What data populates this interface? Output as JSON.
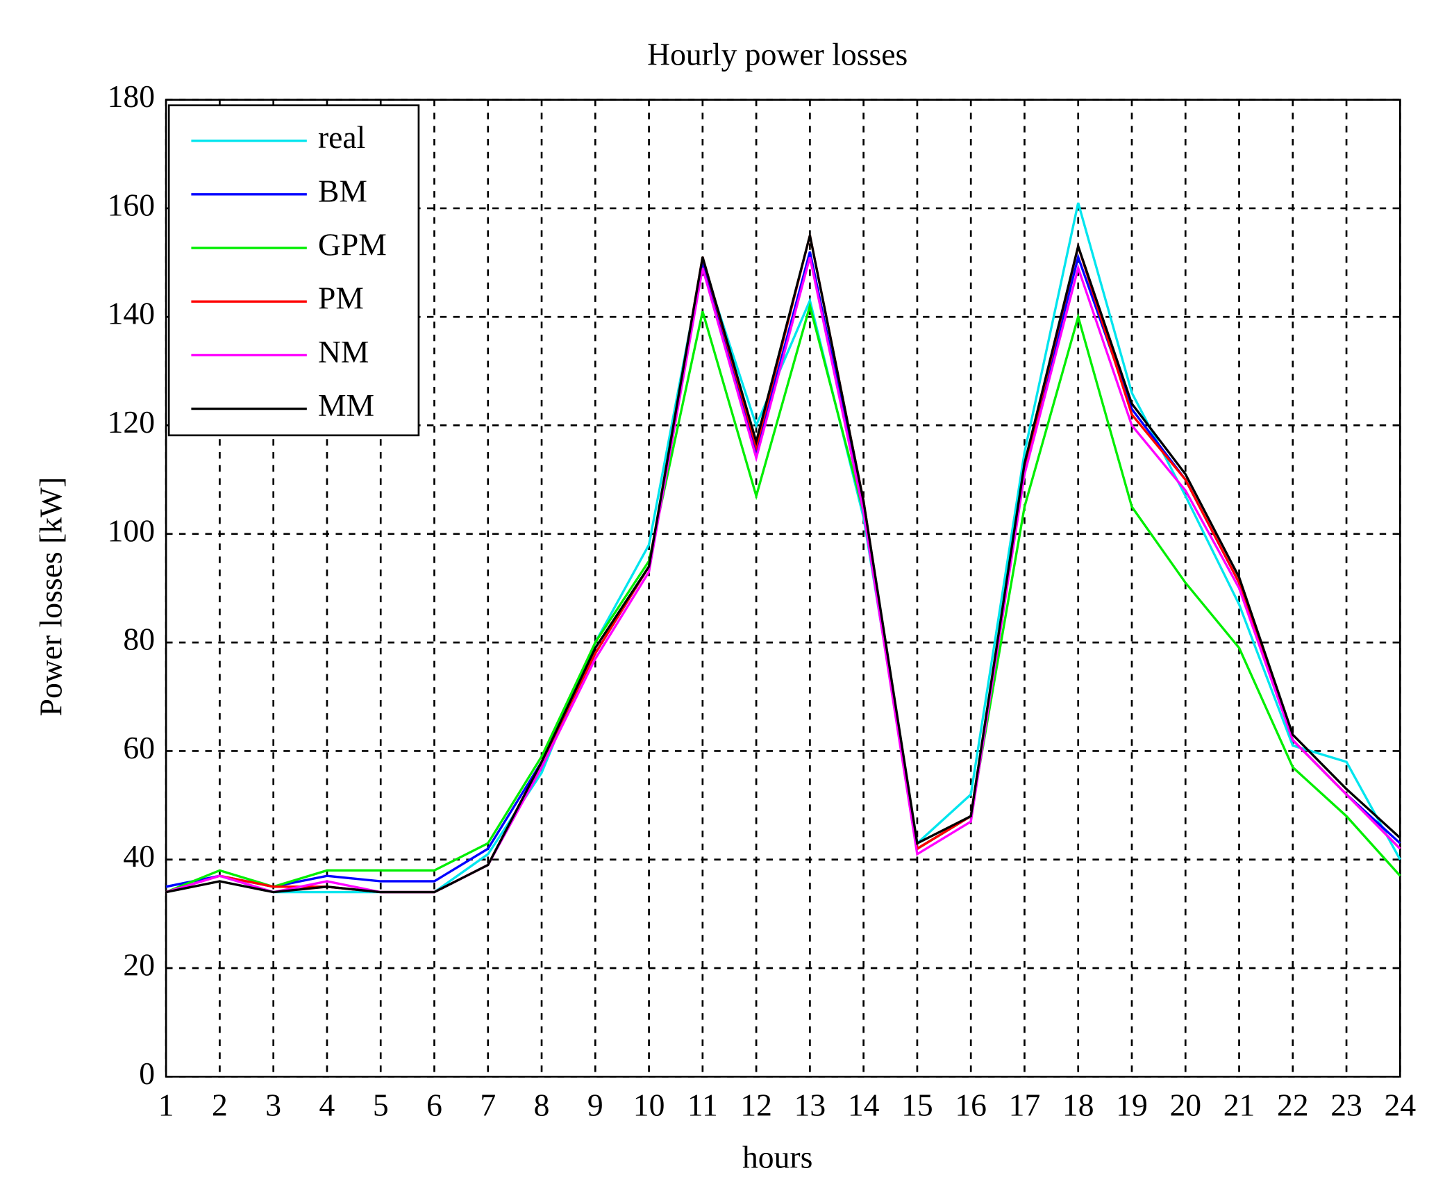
{
  "chart_data": {
    "type": "line",
    "title": "Hourly power losses",
    "x_label": "hours",
    "y_label": "Power losses [kW]",
    "x": [
      1,
      2,
      3,
      4,
      5,
      6,
      7,
      8,
      9,
      10,
      11,
      12,
      13,
      14,
      15,
      16,
      17,
      18,
      19,
      20,
      21,
      22,
      23,
      24
    ],
    "xlim": [
      1,
      24
    ],
    "xticks": [
      1,
      2,
      3,
      4,
      5,
      6,
      7,
      8,
      9,
      10,
      11,
      12,
      13,
      14,
      15,
      16,
      17,
      18,
      19,
      20,
      21,
      22,
      23,
      24
    ],
    "ylim": [
      0,
      180
    ],
    "yticks": [
      0,
      20,
      40,
      60,
      80,
      100,
      120,
      140,
      160,
      180
    ],
    "grid": true,
    "legend": "upper-left",
    "series": [
      {
        "name": "real",
        "color": "#00e5ee",
        "values": [
          35,
          37,
          34,
          34,
          34,
          34,
          41,
          56,
          80,
          98,
          150,
          120,
          143,
          103,
          43,
          52,
          115,
          161,
          126,
          107,
          87,
          61,
          58,
          40
        ]
      },
      {
        "name": "BM",
        "color": "#0000ff",
        "values": [
          35,
          37,
          35,
          37,
          36,
          36,
          42,
          58,
          78,
          94,
          150,
          115,
          152,
          105,
          42,
          48,
          112,
          151,
          123,
          110,
          91,
          62,
          52,
          43
        ]
      },
      {
        "name": "GPM",
        "color": "#00ee00",
        "values": [
          34,
          38,
          35,
          38,
          38,
          38,
          43,
          59,
          80,
          95,
          141,
          107,
          142,
          104,
          42,
          48,
          105,
          140,
          105,
          91,
          79,
          57,
          48,
          37
        ]
      },
      {
        "name": "PM",
        "color": "#ff0000",
        "values": [
          34,
          37,
          35,
          35,
          34,
          34,
          39,
          58,
          78,
          94,
          151,
          116,
          155,
          106,
          42,
          48,
          112,
          153,
          122,
          110,
          91,
          62,
          52,
          42
        ]
      },
      {
        "name": "NM",
        "color": "#ff00ff",
        "values": [
          34,
          37,
          34,
          36,
          34,
          34,
          39,
          57,
          77,
          93,
          149,
          114,
          151,
          104,
          41,
          47,
          111,
          149,
          120,
          108,
          90,
          62,
          52,
          42
        ]
      },
      {
        "name": "MM",
        "color": "#000000",
        "values": [
          34,
          36,
          34,
          35,
          34,
          34,
          39,
          58,
          79,
          94,
          151,
          117,
          155,
          106,
          43,
          48,
          113,
          153,
          124,
          111,
          92,
          63,
          53,
          44
        ]
      }
    ]
  }
}
